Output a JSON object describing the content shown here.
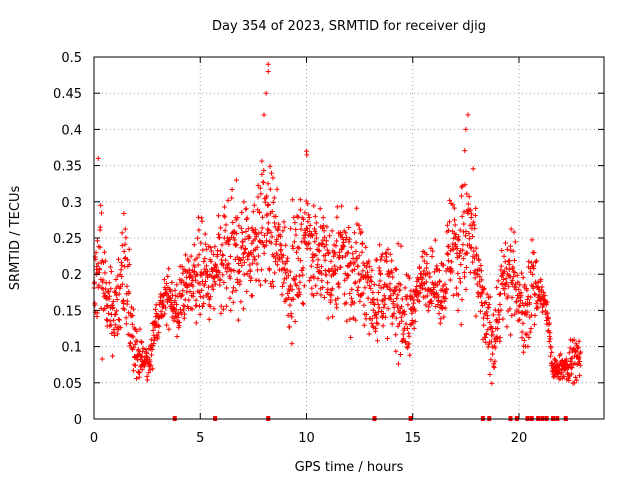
{
  "chart_data": {
    "type": "scatter",
    "title": "Day 354 of 2023, SRMTID for receiver djig",
    "xlabel": "GPS time / hours",
    "ylabel": "SRMTID / TECUs",
    "xlim": [
      0,
      24
    ],
    "ylim": [
      0,
      0.5
    ],
    "xticks": [
      0,
      5,
      10,
      15,
      20
    ],
    "yticks": [
      0,
      0.05,
      0.1,
      0.15,
      0.2,
      0.25,
      0.3,
      0.35,
      0.4,
      0.45,
      0.5
    ],
    "xtick_labels": [
      "0",
      "5",
      "10",
      "15",
      "20"
    ],
    "ytick_labels": [
      "0",
      "0.05",
      "0.1",
      "0.15",
      "0.2",
      "0.25",
      "0.3",
      "0.35",
      "0.4",
      "0.45",
      "0.5"
    ],
    "grid": true,
    "marker": "+",
    "color": "#ff0000",
    "envelope": [
      [
        0.0,
        0.08,
        0.25
      ],
      [
        0.3,
        0.07,
        0.37
      ],
      [
        0.6,
        0.09,
        0.22
      ],
      [
        1.0,
        0.07,
        0.22
      ],
      [
        1.3,
        0.08,
        0.32
      ],
      [
        1.6,
        0.06,
        0.26
      ],
      [
        2.0,
        0.05,
        0.13
      ],
      [
        2.3,
        0.04,
        0.12
      ],
      [
        2.6,
        0.05,
        0.1
      ],
      [
        2.9,
        0.1,
        0.17
      ],
      [
        3.2,
        0.12,
        0.19
      ],
      [
        3.6,
        0.13,
        0.22
      ],
      [
        3.9,
        0.08,
        0.2
      ],
      [
        4.2,
        0.12,
        0.24
      ],
      [
        4.6,
        0.13,
        0.25
      ],
      [
        5.0,
        0.12,
        0.3
      ],
      [
        5.4,
        0.11,
        0.26
      ],
      [
        5.8,
        0.12,
        0.28
      ],
      [
        6.2,
        0.1,
        0.34
      ],
      [
        6.6,
        0.12,
        0.31
      ],
      [
        7.0,
        0.13,
        0.34
      ],
      [
        7.4,
        0.14,
        0.32
      ],
      [
        7.8,
        0.16,
        0.38
      ],
      [
        8.1,
        0.14,
        0.4
      ],
      [
        8.4,
        0.14,
        0.36
      ],
      [
        8.8,
        0.16,
        0.3
      ],
      [
        9.2,
        0.09,
        0.3
      ],
      [
        9.6,
        0.13,
        0.3
      ],
      [
        10.0,
        0.16,
        0.36
      ],
      [
        10.4,
        0.15,
        0.31
      ],
      [
        10.8,
        0.13,
        0.31
      ],
      [
        11.2,
        0.12,
        0.27
      ],
      [
        11.6,
        0.13,
        0.32
      ],
      [
        12.0,
        0.09,
        0.31
      ],
      [
        12.4,
        0.13,
        0.3
      ],
      [
        12.8,
        0.1,
        0.27
      ],
      [
        13.2,
        0.09,
        0.23
      ],
      [
        13.6,
        0.11,
        0.28
      ],
      [
        14.0,
        0.1,
        0.24
      ],
      [
        14.4,
        0.07,
        0.25
      ],
      [
        14.8,
        0.05,
        0.21
      ],
      [
        15.2,
        0.15,
        0.21
      ],
      [
        15.6,
        0.15,
        0.25
      ],
      [
        16.0,
        0.13,
        0.24
      ],
      [
        16.4,
        0.12,
        0.23
      ],
      [
        16.8,
        0.14,
        0.35
      ],
      [
        17.2,
        0.13,
        0.33
      ],
      [
        17.6,
        0.12,
        0.42
      ],
      [
        18.0,
        0.14,
        0.28
      ],
      [
        18.4,
        0.07,
        0.2
      ],
      [
        18.8,
        0.04,
        0.17
      ],
      [
        19.2,
        0.11,
        0.25
      ],
      [
        19.6,
        0.08,
        0.32
      ],
      [
        20.0,
        0.12,
        0.22
      ],
      [
        20.3,
        0.07,
        0.21
      ],
      [
        20.6,
        0.09,
        0.29
      ],
      [
        21.0,
        0.14,
        0.21
      ],
      [
        21.3,
        0.12,
        0.18
      ],
      [
        21.6,
        0.05,
        0.08
      ],
      [
        22.0,
        0.06,
        0.09
      ],
      [
        22.3,
        0.03,
        0.1
      ],
      [
        22.6,
        0.05,
        0.13
      ],
      [
        22.9,
        0.05,
        0.1
      ]
    ],
    "outliers": [
      [
        8.2,
        0.49
      ],
      [
        8.2,
        0.48
      ],
      [
        8.1,
        0.45
      ],
      [
        8.0,
        0.42
      ],
      [
        17.6,
        0.42
      ],
      [
        17.5,
        0.4
      ],
      [
        6.7,
        0.33
      ],
      [
        10.0,
        0.37
      ],
      [
        0.2,
        0.36
      ]
    ],
    "zero_points": [
      3.8,
      5.7,
      8.2,
      13.2,
      14.9,
      18.3,
      18.6,
      19.6,
      19.9,
      20.4,
      20.6,
      20.9,
      21.1,
      21.3,
      21.6,
      21.8,
      22.2
    ]
  }
}
